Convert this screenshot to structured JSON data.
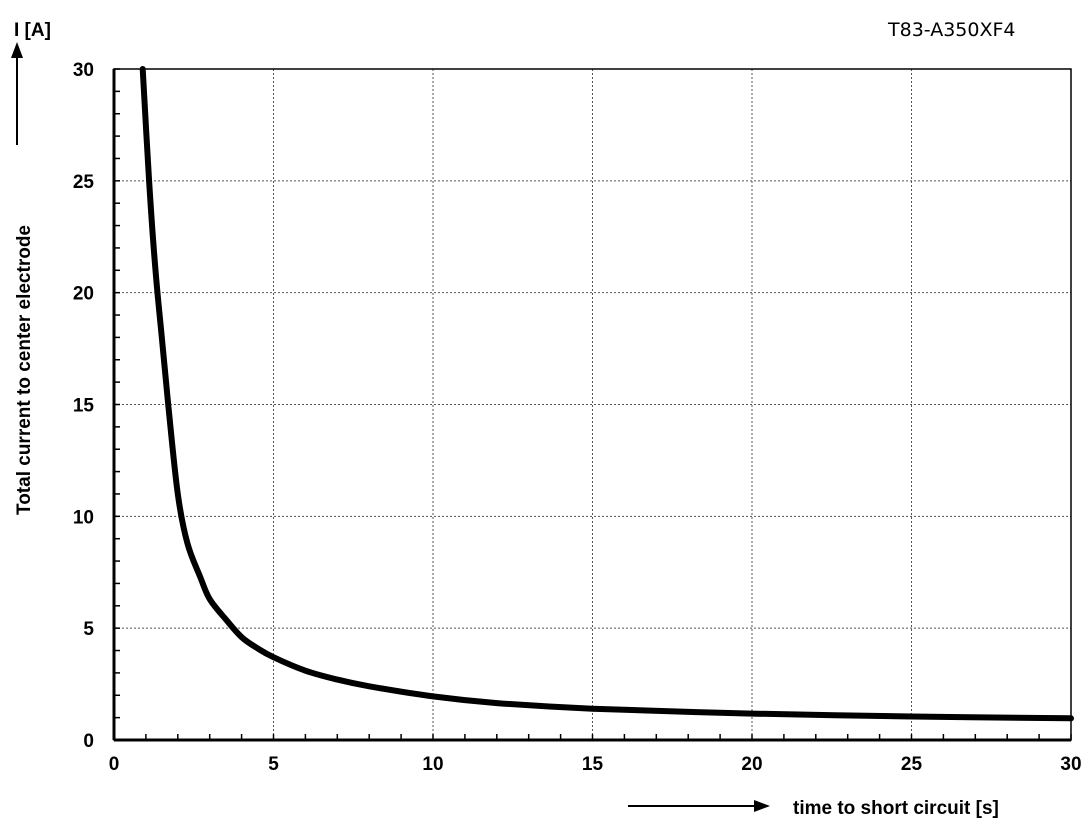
{
  "chart_data": {
    "type": "line",
    "title": "T83-A350XF4",
    "xlabel": "time to short circuit [s]",
    "ylabel": "Total current to center electrode",
    "y_unit_label": "I [A]",
    "xlim": [
      0,
      30
    ],
    "ylim": [
      0,
      30
    ],
    "x_ticks": [
      "0",
      "5",
      "10",
      "15",
      "20",
      "25",
      "30"
    ],
    "y_ticks": [
      "0",
      "5",
      "10",
      "15",
      "20",
      "25",
      "30"
    ],
    "grid": true,
    "series": [
      {
        "x": [
          0.9,
          1.1,
          1.3,
          1.5,
          1.7,
          2.0,
          2.3,
          2.7,
          3.0,
          3.5,
          4.0,
          4.5,
          5.0,
          6.0,
          7.0,
          8.0,
          10.0,
          12.0,
          15.0,
          20.0,
          25.0,
          30.0
        ],
        "values": [
          30.0,
          25.0,
          21.0,
          18.0,
          15.0,
          11.0,
          8.8,
          7.3,
          6.3,
          5.4,
          4.6,
          4.1,
          3.7,
          3.1,
          2.7,
          2.4,
          1.95,
          1.65,
          1.4,
          1.18,
          1.05,
          0.97
        ]
      }
    ]
  }
}
